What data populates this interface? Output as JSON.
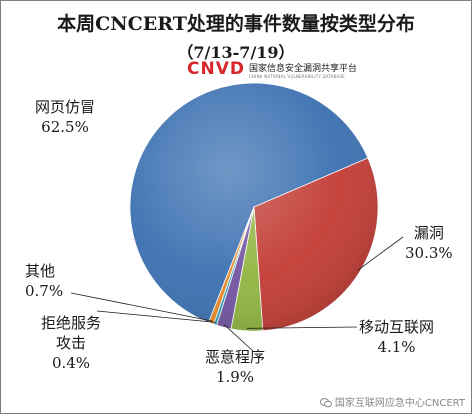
{
  "chart_data": {
    "type": "pie",
    "title": "本周CNCERT处理的事件数量按类型分布",
    "subtitle": "（7/13-7/19）",
    "slices": [
      {
        "label": "网页仿冒",
        "value": 62.5,
        "value_label": "62.5%",
        "color": "#3a6fb0"
      },
      {
        "label": "漏洞",
        "value": 30.3,
        "value_label": "30.3%",
        "color": "#c23b34"
      },
      {
        "label": "移动互联网",
        "value": 4.1,
        "value_label": "4.1%",
        "color": "#8fb43f"
      },
      {
        "label": "恶意程序",
        "value": 1.9,
        "value_label": "1.9%",
        "color": "#7052a0"
      },
      {
        "label": "拒绝服务攻击",
        "label_lines": [
          "拒绝服务",
          "攻击"
        ],
        "value": 0.4,
        "value_label": "0.4%",
        "color": "#2d9db8"
      },
      {
        "label": "其他",
        "value": 0.7,
        "value_label": "0.7%",
        "color": "#e8892a"
      }
    ]
  },
  "logo": {
    "mark": "CNVD",
    "name": "国家信息安全漏洞共享平台",
    "english": "CHINA NATIONAL VULNERABILITY DATABASE"
  },
  "watermark": "国家互联网应急中心CNCERT"
}
